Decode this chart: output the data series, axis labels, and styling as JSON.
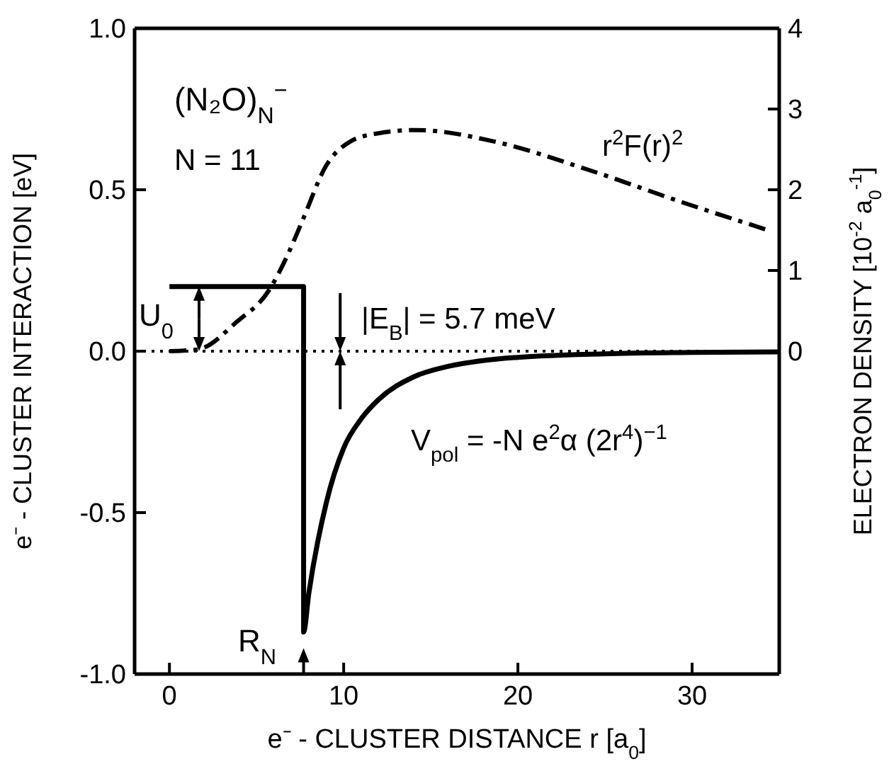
{
  "chart_data": {
    "type": "line",
    "xlabel": "e⁻ - CLUSTER DISTANCE  r  [a$_{0}$]",
    "ylabel": "e⁻ - CLUSTER INTERACTION [eV]",
    "y2label": "ELECTRON DENSITY [10$^{-2}$ a$_{0}$$^{-1}$]",
    "xlim": [
      -2,
      35
    ],
    "xticks": [
      0,
      10,
      20,
      30
    ],
    "ylim": [
      -1,
      1
    ],
    "yticks": [
      {
        "value": -1,
        "label": "-1.0"
      },
      {
        "value": -0.5,
        "label": "-0.5"
      },
      {
        "value": 0,
        "label": "0.0"
      },
      {
        "value": 0.5,
        "label": "0.5"
      },
      {
        "value": 1,
        "label": "1.0"
      }
    ],
    "y2lim": [
      -4,
      4
    ],
    "y2ticks": [
      0,
      1,
      2,
      3,
      4
    ],
    "series": [
      {
        "line_style": "solid",
        "color": "#000000",
        "x": [
          0,
          7.7,
          7.7,
          8,
          9,
          10,
          11,
          12,
          14,
          16,
          18,
          20,
          25,
          30,
          35
        ],
        "values": [
          0.2,
          0.2,
          -0.87,
          -0.75,
          -0.47,
          -0.3,
          -0.21,
          -0.15,
          -0.08,
          -0.047,
          -0.029,
          -0.019,
          -0.008,
          -0.004,
          -0.002
        ]
      },
      {
        "line_style": "dashdot",
        "axis": "y2",
        "color": "#000000",
        "x": [
          0,
          1.6,
          3.9,
          5.7,
          6.8,
          7.6,
          9,
          10.4,
          12,
          14.2,
          18.6,
          24,
          29.5,
          34.2
        ],
        "values": [
          0,
          0.02,
          0.37,
          0.75,
          1.2,
          1.6,
          2.3,
          2.6,
          2.7,
          2.74,
          2.6,
          2.25,
          1.84,
          1.51
        ]
      }
    ],
    "ref_lines": [
      {
        "axis": "y",
        "value": 0,
        "line_style": "dotted",
        "color": "#000000"
      }
    ],
    "marker": "none",
    "annotations": [
      "(N₂O)$_{N}$$^{−}$",
      "N = 11",
      "r$^{2}$F(r)$^{2}$",
      "|E$_{B}$| = 5.7 meV",
      "U$_{0}$",
      "V$_{pol}$ = -N e$^{2}$α (2r$^{4}$)$^{−1}$",
      "R$_{N}$"
    ]
  }
}
